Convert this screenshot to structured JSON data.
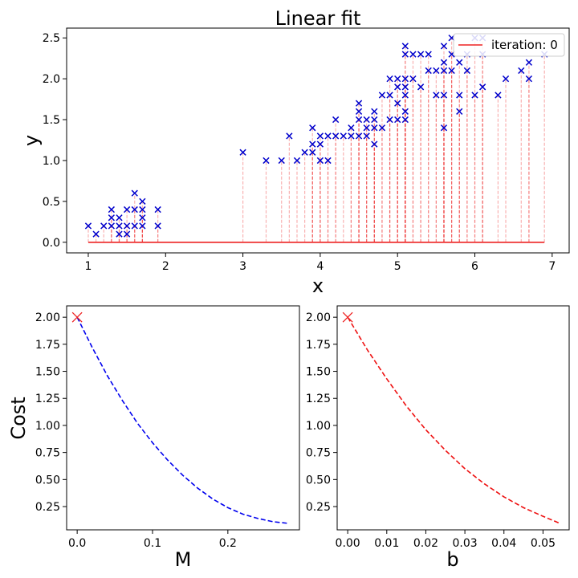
{
  "chart_data": [
    {
      "type": "scatter",
      "title": "Linear fit",
      "xlabel": "x",
      "ylabel": "y",
      "xlim": [
        0.72,
        7.22
      ],
      "ylim": [
        -0.13,
        2.62
      ],
      "xticks": [
        1,
        2,
        3,
        4,
        5,
        6,
        7
      ],
      "xtick_labels": [
        "1",
        "2",
        "3",
        "4",
        "5",
        "6",
        "7"
      ],
      "yticks": [
        0.0,
        0.5,
        1.0,
        1.5,
        2.0,
        2.5
      ],
      "ytick_labels": [
        "0.0",
        "0.5",
        "1.0",
        "1.5",
        "2.0",
        "2.5"
      ],
      "marker": "x",
      "marker_color": "#0000cc",
      "fit_line": {
        "name": "iteration: 0",
        "slope": 0,
        "intercept": 0,
        "x_range": [
          1.0,
          6.9
        ],
        "color": "#ee2222"
      },
      "residual_color": "#ee2222",
      "legend_position": "top-right",
      "grid": false,
      "points": [
        [
          1.0,
          0.2
        ],
        [
          1.1,
          0.1
        ],
        [
          1.2,
          0.2
        ],
        [
          1.3,
          0.2
        ],
        [
          1.3,
          0.3
        ],
        [
          1.3,
          0.4
        ],
        [
          1.4,
          0.1
        ],
        [
          1.4,
          0.2
        ],
        [
          1.4,
          0.3
        ],
        [
          1.5,
          0.1
        ],
        [
          1.5,
          0.2
        ],
        [
          1.5,
          0.4
        ],
        [
          1.6,
          0.2
        ],
        [
          1.6,
          0.4
        ],
        [
          1.6,
          0.6
        ],
        [
          1.7,
          0.2
        ],
        [
          1.7,
          0.3
        ],
        [
          1.7,
          0.4
        ],
        [
          1.7,
          0.5
        ],
        [
          1.9,
          0.2
        ],
        [
          1.9,
          0.4
        ],
        [
          3.0,
          1.1
        ],
        [
          3.3,
          1.0
        ],
        [
          3.5,
          1.0
        ],
        [
          3.6,
          1.3
        ],
        [
          3.7,
          1.0
        ],
        [
          3.8,
          1.1
        ],
        [
          3.9,
          1.1
        ],
        [
          3.9,
          1.2
        ],
        [
          3.9,
          1.4
        ],
        [
          4.0,
          1.0
        ],
        [
          4.0,
          1.2
        ],
        [
          4.0,
          1.3
        ],
        [
          4.1,
          1.0
        ],
        [
          4.1,
          1.3
        ],
        [
          4.2,
          1.3
        ],
        [
          4.2,
          1.5
        ],
        [
          4.3,
          1.3
        ],
        [
          4.4,
          1.3
        ],
        [
          4.4,
          1.4
        ],
        [
          4.5,
          1.3
        ],
        [
          4.5,
          1.5
        ],
        [
          4.5,
          1.6
        ],
        [
          4.5,
          1.7
        ],
        [
          4.6,
          1.3
        ],
        [
          4.6,
          1.4
        ],
        [
          4.6,
          1.5
        ],
        [
          4.7,
          1.2
        ],
        [
          4.7,
          1.4
        ],
        [
          4.7,
          1.5
        ],
        [
          4.7,
          1.6
        ],
        [
          4.8,
          1.4
        ],
        [
          4.8,
          1.8
        ],
        [
          4.9,
          1.5
        ],
        [
          4.9,
          1.8
        ],
        [
          4.9,
          2.0
        ],
        [
          5.0,
          1.5
        ],
        [
          5.0,
          1.7
        ],
        [
          5.0,
          1.9
        ],
        [
          5.0,
          2.0
        ],
        [
          5.1,
          1.5
        ],
        [
          5.1,
          1.6
        ],
        [
          5.1,
          1.8
        ],
        [
          5.1,
          1.9
        ],
        [
          5.1,
          2.0
        ],
        [
          5.1,
          2.3
        ],
        [
          5.1,
          2.4
        ],
        [
          5.2,
          2.0
        ],
        [
          5.2,
          2.3
        ],
        [
          5.3,
          1.9
        ],
        [
          5.3,
          2.3
        ],
        [
          5.4,
          2.1
        ],
        [
          5.4,
          2.3
        ],
        [
          5.5,
          1.8
        ],
        [
          5.5,
          2.1
        ],
        [
          5.6,
          1.4
        ],
        [
          5.6,
          1.8
        ],
        [
          5.6,
          2.1
        ],
        [
          5.6,
          2.2
        ],
        [
          5.6,
          2.4
        ],
        [
          5.7,
          2.1
        ],
        [
          5.7,
          2.3
        ],
        [
          5.7,
          2.5
        ],
        [
          5.8,
          1.6
        ],
        [
          5.8,
          1.8
        ],
        [
          5.8,
          2.2
        ],
        [
          5.9,
          2.1
        ],
        [
          5.9,
          2.3
        ],
        [
          6.0,
          1.8
        ],
        [
          6.0,
          2.5
        ],
        [
          6.1,
          1.9
        ],
        [
          6.1,
          2.3
        ],
        [
          6.1,
          2.5
        ],
        [
          6.3,
          1.8
        ],
        [
          6.4,
          2.0
        ],
        [
          6.6,
          2.1
        ],
        [
          6.7,
          2.0
        ],
        [
          6.7,
          2.2
        ],
        [
          6.9,
          2.3
        ]
      ]
    },
    {
      "type": "line",
      "xlabel": "M",
      "ylabel": "Cost",
      "xlim": [
        -0.014,
        0.295
      ],
      "ylim": [
        0.035,
        2.105
      ],
      "xticks": [
        0.0,
        0.1,
        0.2
      ],
      "xtick_labels": [
        "0.0",
        "0.1",
        "0.2"
      ],
      "yticks": [
        0.25,
        0.5,
        0.75,
        1.0,
        1.25,
        1.5,
        1.75,
        2.0
      ],
      "ytick_labels": [
        "0.25",
        "0.50",
        "0.75",
        "1.00",
        "1.25",
        "1.50",
        "1.75",
        "2.00"
      ],
      "line_color": "#0000ee",
      "line_style": "dashed",
      "x": [
        0.0,
        0.02,
        0.04,
        0.06,
        0.08,
        0.1,
        0.12,
        0.14,
        0.16,
        0.18,
        0.2,
        0.22,
        0.24,
        0.26,
        0.28
      ],
      "y": [
        2.0,
        1.72,
        1.46,
        1.23,
        1.02,
        0.84,
        0.68,
        0.54,
        0.42,
        0.32,
        0.24,
        0.18,
        0.14,
        0.11,
        0.095
      ],
      "current_point": {
        "x": 0.0,
        "y": 2.0,
        "marker": "x",
        "color": "#ee2222"
      }
    },
    {
      "type": "line",
      "xlabel": "b",
      "ylabel": "",
      "xlim": [
        -0.0027,
        0.0567
      ],
      "ylim": [
        0.035,
        2.105
      ],
      "xticks": [
        0.0,
        0.01,
        0.02,
        0.03,
        0.04,
        0.05
      ],
      "xtick_labels": [
        "0.00",
        "0.01",
        "0.02",
        "0.03",
        "0.04",
        "0.05"
      ],
      "yticks": [
        0.25,
        0.5,
        0.75,
        1.0,
        1.25,
        1.5,
        1.75,
        2.0
      ],
      "ytick_labels": [
        "0.25",
        "0.50",
        "0.75",
        "1.00",
        "1.25",
        "1.50",
        "1.75",
        "2.00"
      ],
      "line_color": "#ee1111",
      "line_style": "dashed",
      "x": [
        0.0,
        0.005,
        0.01,
        0.015,
        0.02,
        0.025,
        0.03,
        0.035,
        0.04,
        0.045,
        0.05,
        0.054
      ],
      "y": [
        2.0,
        1.7,
        1.43,
        1.18,
        0.96,
        0.77,
        0.6,
        0.46,
        0.34,
        0.24,
        0.16,
        0.1
      ],
      "current_point": {
        "x": 0.0,
        "y": 2.0,
        "marker": "x",
        "color": "#ee2222"
      }
    }
  ]
}
